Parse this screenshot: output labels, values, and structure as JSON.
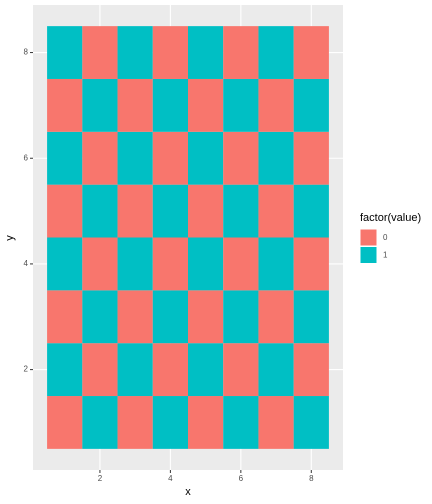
{
  "chart_data": {
    "type": "heatmap",
    "x_label": "x",
    "y_label": "y",
    "x": [
      1,
      2,
      3,
      4,
      5,
      6,
      7,
      8
    ],
    "y": [
      1,
      2,
      3,
      4,
      5,
      6,
      7,
      8
    ],
    "values": [
      [
        0,
        1,
        0,
        1,
        0,
        1,
        0,
        1
      ],
      [
        1,
        0,
        1,
        0,
        1,
        0,
        1,
        0
      ],
      [
        0,
        1,
        0,
        1,
        0,
        1,
        0,
        1
      ],
      [
        1,
        0,
        1,
        0,
        1,
        0,
        1,
        0
      ],
      [
        0,
        1,
        0,
        1,
        0,
        1,
        0,
        1
      ],
      [
        1,
        0,
        1,
        0,
        1,
        0,
        1,
        0
      ],
      [
        0,
        1,
        0,
        1,
        0,
        1,
        0,
        1
      ],
      [
        1,
        0,
        1,
        0,
        1,
        0,
        1,
        0
      ]
    ],
    "legend_title": "factor(value)",
    "levels": [
      0,
      1
    ],
    "colors": [
      "#F8766D",
      "#00BFC4"
    ],
    "xlim": [
      0.1,
      8.9
    ],
    "ylim": [
      0.1,
      8.9
    ],
    "xticks": [
      2,
      4,
      6,
      8
    ],
    "yticks": [
      2,
      4,
      6,
      8
    ],
    "grid": true
  }
}
